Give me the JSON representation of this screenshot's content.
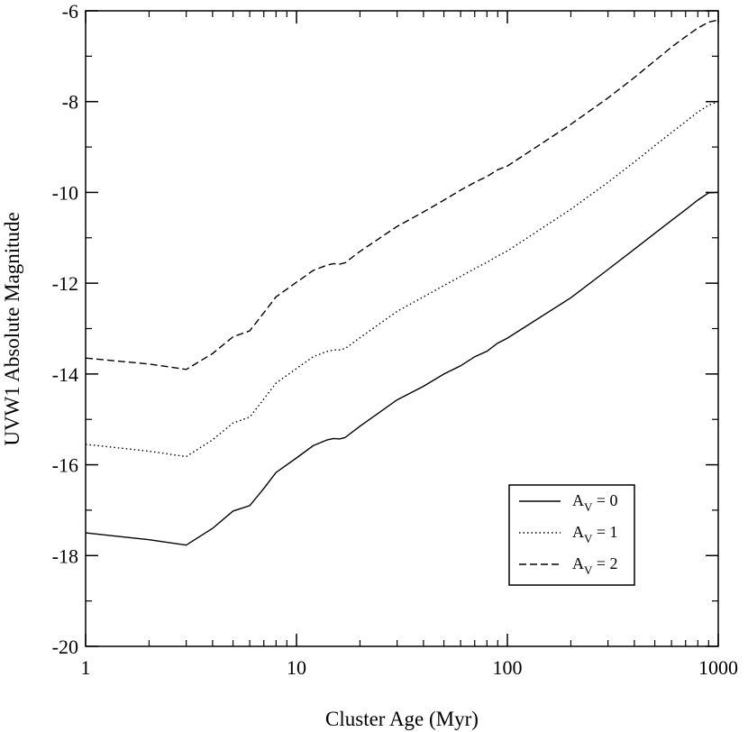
{
  "chart_data": {
    "type": "line",
    "title": "",
    "xlabel": "Cluster Age  (Myr)",
    "ylabel": "UVW1 Absolute Magnitude",
    "x_scale": "log",
    "xlim": [
      1,
      1000
    ],
    "ylim": [
      -20,
      -6
    ],
    "x_ticks": [
      1,
      10,
      100,
      1000
    ],
    "x_tick_labels": [
      "1",
      "10",
      "100",
      "1000"
    ],
    "y_ticks": [
      -20,
      -18,
      -16,
      -14,
      -12,
      -10,
      -8,
      -6
    ],
    "y_tick_labels": [
      "-20",
      "-18",
      "-16",
      "-14",
      "-12",
      "-10",
      "-8",
      "-6"
    ],
    "grid": false,
    "legend_position": "bottom-right",
    "series": [
      {
        "name": "A_V = 0",
        "label_main": "A",
        "label_sub": "V",
        "label_rest": " = 0",
        "style": "solid",
        "x": [
          1,
          2,
          3,
          4,
          5,
          6,
          7,
          8,
          10,
          12,
          14,
          15,
          16,
          17,
          20,
          30,
          40,
          50,
          60,
          70,
          80,
          90,
          100,
          200,
          300,
          400,
          500,
          600,
          700,
          800,
          900,
          1000
        ],
        "y": [
          -17.5,
          -17.65,
          -17.77,
          -17.4,
          -17.02,
          -16.9,
          -16.52,
          -16.17,
          -15.85,
          -15.58,
          -15.45,
          -15.42,
          -15.43,
          -15.4,
          -15.15,
          -14.57,
          -14.27,
          -14.0,
          -13.82,
          -13.62,
          -13.5,
          -13.32,
          -13.21,
          -12.32,
          -11.7,
          -11.25,
          -10.9,
          -10.62,
          -10.38,
          -10.17,
          -10.01,
          -10.0
        ]
      },
      {
        "name": "A_V = 1",
        "label_main": "A",
        "label_sub": "V",
        "label_rest": " = 1",
        "style": "dotted",
        "x": [
          1,
          2,
          3,
          4,
          5,
          6,
          7,
          8,
          10,
          12,
          14,
          15,
          16,
          17,
          20,
          30,
          40,
          50,
          60,
          70,
          80,
          90,
          100,
          200,
          300,
          400,
          500,
          600,
          700,
          800,
          900,
          1000
        ],
        "y": [
          -15.55,
          -15.7,
          -15.82,
          -15.45,
          -15.08,
          -14.95,
          -14.55,
          -14.2,
          -13.88,
          -13.62,
          -13.5,
          -13.47,
          -13.47,
          -13.44,
          -13.2,
          -12.62,
          -12.3,
          -12.05,
          -11.85,
          -11.68,
          -11.54,
          -11.4,
          -11.29,
          -10.37,
          -9.78,
          -9.33,
          -8.97,
          -8.68,
          -8.44,
          -8.23,
          -8.08,
          -8.0
        ]
      },
      {
        "name": "A_V = 2",
        "label_main": "A",
        "label_sub": "V",
        "label_rest": " = 2",
        "style": "dashed",
        "x": [
          1,
          2,
          3,
          4,
          5,
          6,
          7,
          8,
          10,
          12,
          14,
          15,
          16,
          17,
          20,
          30,
          40,
          50,
          60,
          70,
          80,
          90,
          100,
          200,
          300,
          400,
          500,
          600,
          700,
          800,
          900,
          1000
        ],
        "y": [
          -13.65,
          -13.78,
          -13.9,
          -13.55,
          -13.18,
          -13.05,
          -12.65,
          -12.3,
          -11.98,
          -11.72,
          -11.6,
          -11.57,
          -11.58,
          -11.55,
          -11.3,
          -10.75,
          -10.43,
          -10.17,
          -9.95,
          -9.78,
          -9.65,
          -9.5,
          -9.42,
          -8.5,
          -7.92,
          -7.47,
          -7.1,
          -6.8,
          -6.57,
          -6.38,
          -6.25,
          -6.2
        ]
      }
    ]
  }
}
